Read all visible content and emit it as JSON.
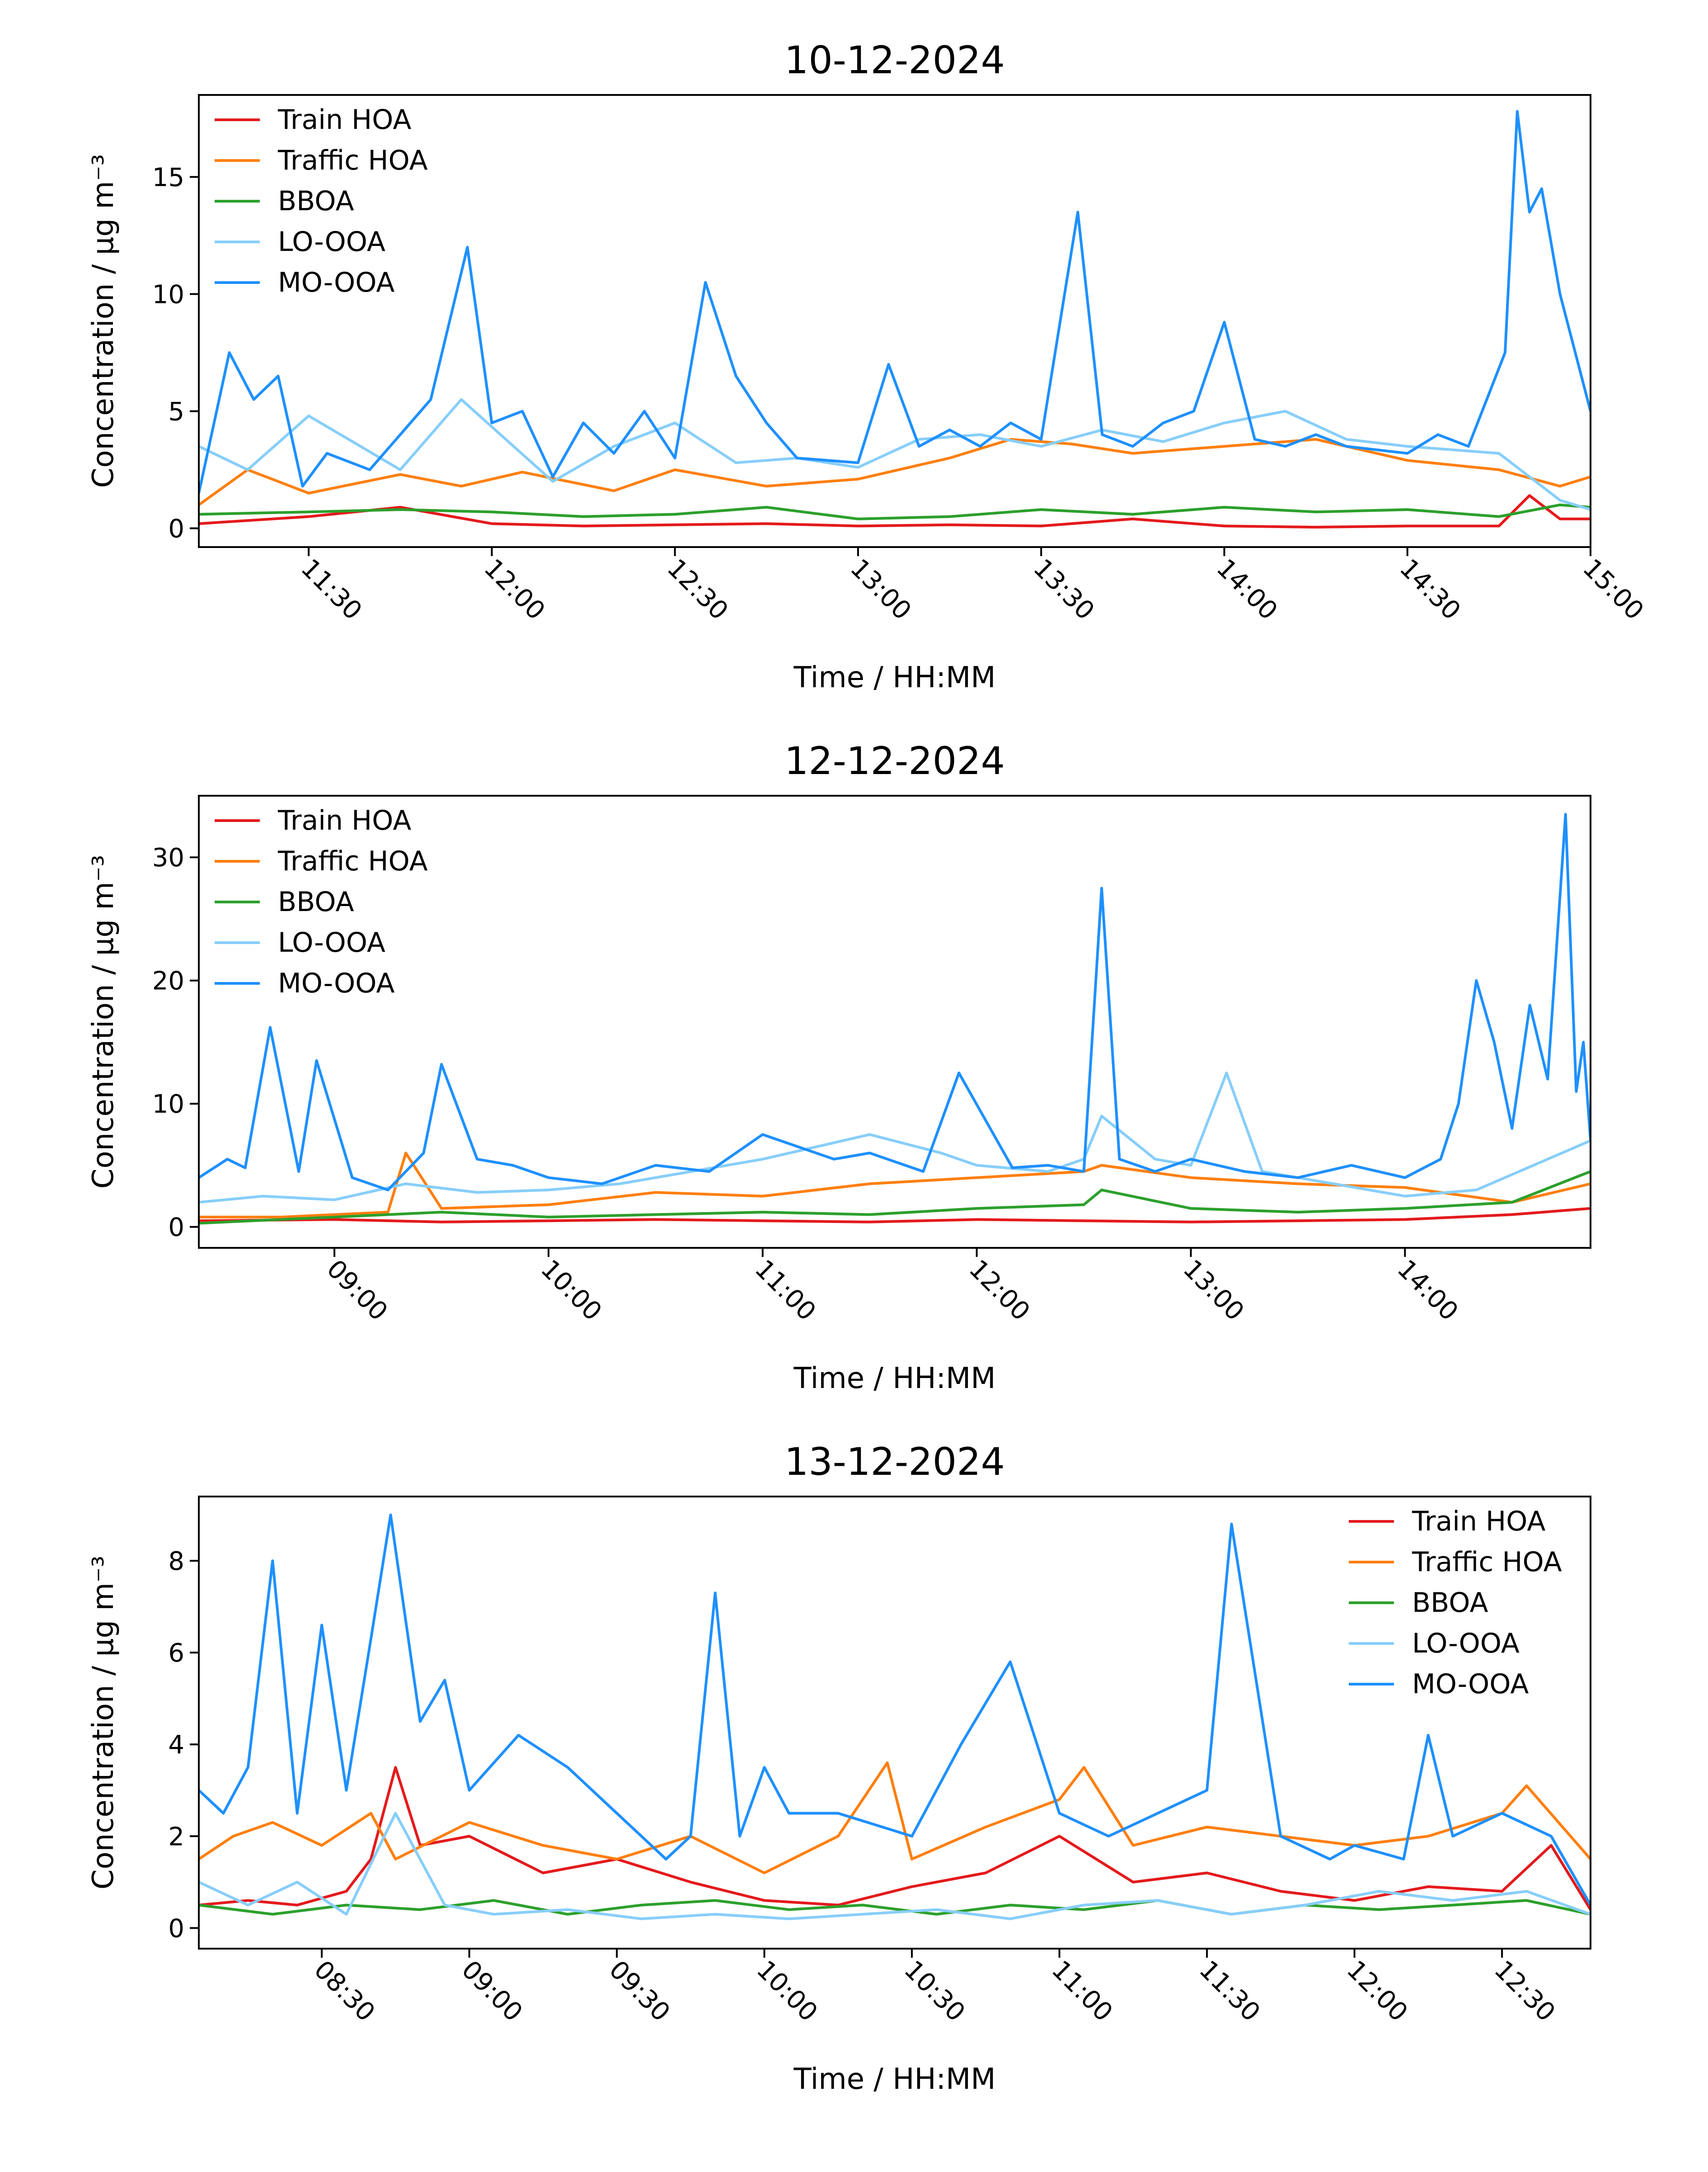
{
  "figure": {
    "series_colors": {
      "Train HOA": "#e41a1c",
      "Traffic HOA": "#ff7f0e",
      "BBOA": "#2ca02c",
      "LO-OOA": "#87cefa",
      "MO-OOA": "#1e90ff"
    },
    "line_color": "#000000",
    "background": "#ffffff"
  },
  "chart_data": [
    {
      "type": "line",
      "title": "10-12-2024",
      "xlabel": "Time / HH:MM",
      "ylabel": "Concentration / μg m⁻³",
      "xlim": [
        "11:12",
        "15:00"
      ],
      "ylim": [
        -0.8,
        18.5
      ],
      "xticks": [
        "11:30",
        "12:00",
        "12:30",
        "13:00",
        "13:30",
        "14:00",
        "14:30",
        "15:00"
      ],
      "yticks": [
        0,
        5,
        10,
        15
      ],
      "grid": false,
      "legend_position": "top-left",
      "series": [
        {
          "name": "Train HOA",
          "x": [
            "11:12",
            "11:30",
            "11:45",
            "12:00",
            "12:15",
            "12:30",
            "12:45",
            "13:00",
            "13:15",
            "13:30",
            "13:45",
            "14:00",
            "14:15",
            "14:30",
            "14:45",
            "14:50",
            "14:55",
            "15:00"
          ],
          "y": [
            0.2,
            0.5,
            0.9,
            0.2,
            0.1,
            0.15,
            0.2,
            0.1,
            0.15,
            0.1,
            0.4,
            0.1,
            0.05,
            0.1,
            0.1,
            1.4,
            0.4,
            0.4
          ]
        },
        {
          "name": "Traffic HOA",
          "x": [
            "11:12",
            "11:20",
            "11:30",
            "11:45",
            "11:55",
            "12:05",
            "12:20",
            "12:30",
            "12:45",
            "13:00",
            "13:15",
            "13:25",
            "13:35",
            "13:45",
            "14:00",
            "14:15",
            "14:30",
            "14:45",
            "14:55",
            "15:00"
          ],
          "y": [
            1.0,
            2.5,
            1.5,
            2.3,
            1.8,
            2.4,
            1.6,
            2.5,
            1.8,
            2.1,
            3.0,
            3.8,
            3.6,
            3.2,
            3.5,
            3.8,
            2.9,
            2.5,
            1.8,
            2.2
          ]
        },
        {
          "name": "BBOA",
          "x": [
            "11:12",
            "11:30",
            "11:45",
            "12:00",
            "12:15",
            "12:30",
            "12:45",
            "13:00",
            "13:15",
            "13:30",
            "13:45",
            "14:00",
            "14:15",
            "14:30",
            "14:45",
            "14:55",
            "15:00"
          ],
          "y": [
            0.6,
            0.7,
            0.8,
            0.7,
            0.5,
            0.6,
            0.9,
            0.4,
            0.5,
            0.8,
            0.6,
            0.9,
            0.7,
            0.8,
            0.5,
            1.0,
            0.9
          ]
        },
        {
          "name": "LO-OOA",
          "x": [
            "11:12",
            "11:20",
            "11:30",
            "11:45",
            "11:55",
            "12:10",
            "12:20",
            "12:30",
            "12:40",
            "12:50",
            "13:00",
            "13:10",
            "13:20",
            "13:30",
            "13:40",
            "13:50",
            "14:00",
            "14:10",
            "14:20",
            "14:30",
            "14:45",
            "14:55",
            "15:00"
          ],
          "y": [
            3.5,
            2.5,
            4.8,
            2.5,
            5.5,
            2.0,
            3.5,
            4.5,
            2.8,
            3.0,
            2.6,
            3.8,
            4.0,
            3.5,
            4.2,
            3.7,
            4.5,
            5.0,
            3.8,
            3.5,
            3.2,
            1.2,
            0.8
          ]
        },
        {
          "name": "MO-OOA",
          "x": [
            "11:12",
            "11:17",
            "11:21",
            "11:25",
            "11:29",
            "11:33",
            "11:40",
            "11:45",
            "11:50",
            "11:56",
            "12:00",
            "12:05",
            "12:10",
            "12:15",
            "12:20",
            "12:25",
            "12:30",
            "12:35",
            "12:40",
            "12:45",
            "12:50",
            "13:00",
            "13:05",
            "13:10",
            "13:15",
            "13:20",
            "13:25",
            "13:30",
            "13:36",
            "13:40",
            "13:45",
            "13:50",
            "13:55",
            "14:00",
            "14:05",
            "14:10",
            "14:15",
            "14:20",
            "14:30",
            "14:35",
            "14:40",
            "14:46",
            "14:48",
            "14:50",
            "14:52",
            "14:55",
            "15:00"
          ],
          "y": [
            1.5,
            7.5,
            5.5,
            6.5,
            1.8,
            3.2,
            2.5,
            4.0,
            5.5,
            12.0,
            4.5,
            5.0,
            2.2,
            4.5,
            3.2,
            5.0,
            3.0,
            10.5,
            6.5,
            4.5,
            3.0,
            2.8,
            7.0,
            3.5,
            4.2,
            3.5,
            4.5,
            3.8,
            13.5,
            4.0,
            3.5,
            4.5,
            5.0,
            8.8,
            3.8,
            3.5,
            4.0,
            3.5,
            3.2,
            4.0,
            3.5,
            7.5,
            17.8,
            13.5,
            14.5,
            10.0,
            5.0
          ]
        }
      ]
    },
    {
      "type": "line",
      "title": "12-12-2024",
      "xlabel": "Time / HH:MM",
      "ylabel": "Concentration / μg m⁻³",
      "xlim": [
        "08:22",
        "14:52"
      ],
      "ylim": [
        -1.7,
        35
      ],
      "xticks": [
        "09:00",
        "10:00",
        "11:00",
        "12:00",
        "13:00",
        "14:00"
      ],
      "yticks": [
        0,
        10,
        20,
        30
      ],
      "grid": false,
      "legend_position": "top-left",
      "series": [
        {
          "name": "Train HOA",
          "x": [
            "08:22",
            "09:00",
            "09:30",
            "10:00",
            "10:30",
            "11:00",
            "11:30",
            "12:00",
            "12:30",
            "13:00",
            "13:30",
            "14:00",
            "14:30",
            "14:52"
          ],
          "y": [
            0.5,
            0.6,
            0.4,
            0.5,
            0.6,
            0.5,
            0.4,
            0.6,
            0.5,
            0.4,
            0.5,
            0.6,
            1.0,
            1.5
          ]
        },
        {
          "name": "Traffic HOA",
          "x": [
            "08:22",
            "08:45",
            "09:00",
            "09:15",
            "09:20",
            "09:30",
            "10:00",
            "10:30",
            "11:00",
            "11:30",
            "12:00",
            "12:30",
            "12:35",
            "13:00",
            "13:30",
            "14:00",
            "14:30",
            "14:52"
          ],
          "y": [
            0.8,
            0.8,
            1.0,
            1.2,
            6.0,
            1.5,
            1.8,
            2.8,
            2.5,
            3.5,
            4.0,
            4.5,
            5.0,
            4.0,
            3.5,
            3.2,
            2.0,
            3.5
          ]
        },
        {
          "name": "BBOA",
          "x": [
            "08:22",
            "09:00",
            "09:30",
            "10:00",
            "10:30",
            "11:00",
            "11:30",
            "12:00",
            "12:30",
            "12:35",
            "13:00",
            "13:30",
            "14:00",
            "14:30",
            "14:52"
          ],
          "y": [
            0.3,
            0.8,
            1.2,
            0.8,
            1.0,
            1.2,
            1.0,
            1.5,
            1.8,
            3.0,
            1.5,
            1.2,
            1.5,
            2.0,
            4.5
          ]
        },
        {
          "name": "LO-OOA",
          "x": [
            "08:22",
            "08:40",
            "09:00",
            "09:20",
            "09:40",
            "10:00",
            "10:20",
            "10:40",
            "11:00",
            "11:15",
            "11:30",
            "11:50",
            "12:00",
            "12:20",
            "12:30",
            "12:35",
            "12:50",
            "13:00",
            "13:10",
            "13:20",
            "13:40",
            "14:00",
            "14:20",
            "14:40",
            "14:52"
          ],
          "y": [
            2.0,
            2.5,
            2.2,
            3.5,
            2.8,
            3.0,
            3.5,
            4.5,
            5.5,
            6.5,
            7.5,
            6.0,
            5.0,
            4.5,
            5.5,
            9.0,
            5.5,
            5.0,
            12.5,
            4.5,
            3.5,
            2.5,
            3.0,
            5.5,
            7.0
          ]
        },
        {
          "name": "MO-OOA",
          "x": [
            "08:22",
            "08:30",
            "08:35",
            "08:42",
            "08:50",
            "08:55",
            "09:05",
            "09:15",
            "09:25",
            "09:30",
            "09:40",
            "09:50",
            "10:00",
            "10:15",
            "10:30",
            "10:45",
            "11:00",
            "11:20",
            "11:30",
            "11:45",
            "11:55",
            "12:10",
            "12:20",
            "12:30",
            "12:35",
            "12:40",
            "12:45",
            "12:50",
            "13:00",
            "13:15",
            "13:30",
            "13:45",
            "14:00",
            "14:10",
            "14:15",
            "14:20",
            "14:25",
            "14:30",
            "14:35",
            "14:40",
            "14:45",
            "14:48",
            "14:50",
            "14:52"
          ],
          "y": [
            4.0,
            5.5,
            4.8,
            16.2,
            4.5,
            13.5,
            4.0,
            3.0,
            6.0,
            13.2,
            5.5,
            5.0,
            4.0,
            3.5,
            5.0,
            4.5,
            7.5,
            5.5,
            6.0,
            4.5,
            12.5,
            4.8,
            5.0,
            4.5,
            27.5,
            5.5,
            5.0,
            4.5,
            5.5,
            4.5,
            4.0,
            5.0,
            4.0,
            5.5,
            10.0,
            20.0,
            15.0,
            8.0,
            18.0,
            12.0,
            33.5,
            11.0,
            15.0,
            7.0
          ]
        }
      ]
    },
    {
      "type": "line",
      "title": "13-12-2024",
      "xlabel": "Time / HH:MM",
      "ylabel": "Concentration / μg m⁻³",
      "xlim": [
        "08:05",
        "12:48"
      ],
      "ylim": [
        -0.45,
        9.4
      ],
      "xticks": [
        "08:30",
        "09:00",
        "09:30",
        "10:00",
        "10:30",
        "11:00",
        "11:30",
        "12:00",
        "12:30"
      ],
      "yticks": [
        0,
        2,
        4,
        6,
        8
      ],
      "grid": false,
      "legend_position": "top-right",
      "series": [
        {
          "name": "Train HOA",
          "x": [
            "08:05",
            "08:15",
            "08:25",
            "08:35",
            "08:40",
            "08:45",
            "08:50",
            "09:00",
            "09:15",
            "09:30",
            "09:45",
            "10:00",
            "10:15",
            "10:30",
            "10:45",
            "11:00",
            "11:15",
            "11:30",
            "11:45",
            "12:00",
            "12:15",
            "12:30",
            "12:40",
            "12:48"
          ],
          "y": [
            0.5,
            0.6,
            0.5,
            0.8,
            1.5,
            3.5,
            1.8,
            2.0,
            1.2,
            1.5,
            1.0,
            0.6,
            0.5,
            0.9,
            1.2,
            2.0,
            1.0,
            1.2,
            0.8,
            0.6,
            0.9,
            0.8,
            1.8,
            0.4
          ]
        },
        {
          "name": "Traffic HOA",
          "x": [
            "08:05",
            "08:12",
            "08:20",
            "08:30",
            "08:40",
            "08:45",
            "09:00",
            "09:15",
            "09:30",
            "09:45",
            "10:00",
            "10:15",
            "10:25",
            "10:30",
            "10:45",
            "11:00",
            "11:05",
            "11:15",
            "11:30",
            "11:45",
            "12:00",
            "12:15",
            "12:30",
            "12:35",
            "12:48"
          ],
          "y": [
            1.5,
            2.0,
            2.3,
            1.8,
            2.5,
            1.5,
            2.3,
            1.8,
            1.5,
            2.0,
            1.2,
            2.0,
            3.6,
            1.5,
            2.2,
            2.8,
            3.5,
            1.8,
            2.2,
            2.0,
            1.8,
            2.0,
            2.5,
            3.1,
            1.5
          ]
        },
        {
          "name": "BBOA",
          "x": [
            "08:05",
            "08:20",
            "08:35",
            "08:50",
            "09:05",
            "09:20",
            "09:35",
            "09:50",
            "10:05",
            "10:20",
            "10:35",
            "10:50",
            "11:05",
            "11:20",
            "11:35",
            "11:50",
            "12:05",
            "12:20",
            "12:35",
            "12:48"
          ],
          "y": [
            0.5,
            0.3,
            0.5,
            0.4,
            0.6,
            0.3,
            0.5,
            0.6,
            0.4,
            0.5,
            0.3,
            0.5,
            0.4,
            0.6,
            0.3,
            0.5,
            0.4,
            0.5,
            0.6,
            0.3
          ]
        },
        {
          "name": "LO-OOA",
          "x": [
            "08:05",
            "08:15",
            "08:25",
            "08:35",
            "08:45",
            "08:55",
            "09:05",
            "09:20",
            "09:35",
            "09:50",
            "10:05",
            "10:20",
            "10:35",
            "10:50",
            "11:05",
            "11:20",
            "11:35",
            "11:50",
            "12:05",
            "12:20",
            "12:35",
            "12:48"
          ],
          "y": [
            1.0,
            0.5,
            1.0,
            0.3,
            2.5,
            0.5,
            0.3,
            0.4,
            0.2,
            0.3,
            0.2,
            0.3,
            0.4,
            0.2,
            0.5,
            0.6,
            0.3,
            0.5,
            0.8,
            0.6,
            0.8,
            0.3
          ]
        },
        {
          "name": "MO-OOA",
          "x": [
            "08:05",
            "08:10",
            "08:15",
            "08:20",
            "08:25",
            "08:30",
            "08:35",
            "08:40",
            "08:44",
            "08:50",
            "08:55",
            "09:00",
            "09:10",
            "09:20",
            "09:30",
            "09:40",
            "09:45",
            "09:50",
            "09:55",
            "10:00",
            "10:05",
            "10:15",
            "10:30",
            "10:40",
            "10:50",
            "11:00",
            "11:10",
            "11:20",
            "11:30",
            "11:35",
            "11:45",
            "11:55",
            "12:00",
            "12:10",
            "12:15",
            "12:20",
            "12:30",
            "12:40",
            "12:48"
          ],
          "y": [
            3.0,
            2.5,
            3.5,
            8.0,
            2.5,
            6.6,
            3.0,
            6.3,
            9.0,
            4.5,
            5.4,
            3.0,
            4.2,
            3.5,
            2.5,
            1.5,
            2.0,
            7.3,
            2.0,
            3.5,
            2.5,
            2.5,
            2.0,
            4.0,
            5.8,
            2.5,
            2.0,
            2.5,
            3.0,
            8.8,
            2.0,
            1.5,
            1.8,
            1.5,
            4.2,
            2.0,
            2.5,
            2.0,
            0.5
          ]
        }
      ]
    }
  ]
}
